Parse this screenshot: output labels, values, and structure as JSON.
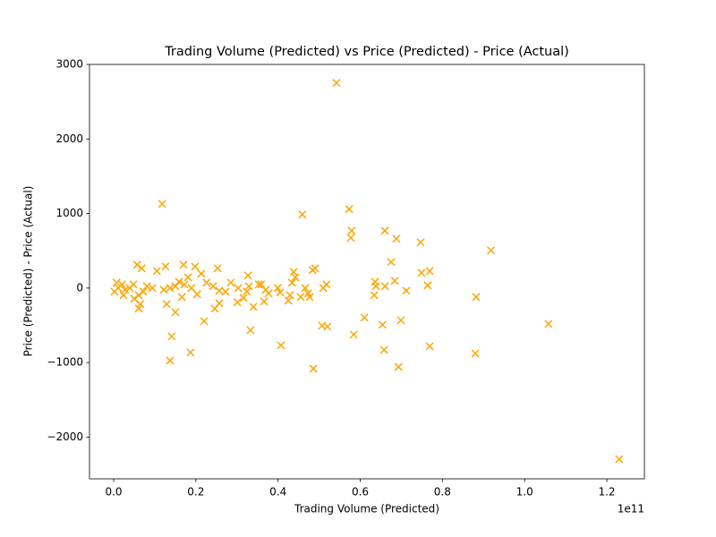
{
  "chart_data": {
    "type": "scatter",
    "title": "Trading Volume (Predicted) vs Price (Predicted) - Price (Actual)",
    "x_label": "Trading Volume (Predicted)",
    "y_label": "Price (Predicted) - Price (Actual)",
    "x_offset_label": "1e11",
    "color": "#ffa500",
    "marker": "x",
    "xlim": [
      -0.0588,
      1.2914
    ],
    "ylim": [
      -2560,
      3000
    ],
    "xticks": [
      {
        "value": 0,
        "label": "0.0"
      },
      {
        "value": 0.2,
        "label": "0.2"
      },
      {
        "value": 0.4,
        "label": "0.4"
      },
      {
        "value": 0.6,
        "label": "0.6"
      },
      {
        "value": 0.8,
        "label": "0.8"
      },
      {
        "value": 1.0,
        "label": "1.0"
      },
      {
        "value": 1.2,
        "label": "1.2"
      }
    ],
    "yticks": [
      {
        "value": -2000,
        "label": "−2000"
      },
      {
        "value": -1000,
        "label": "−1000"
      },
      0,
      1000,
      2000,
      3000
    ],
    "x": [
      0.542,
      0.118,
      0.459,
      0.573,
      0.579,
      0.577,
      0.66,
      0.688,
      0.918,
      0.747,
      0.675,
      0.769,
      0.749,
      0.684,
      0.636,
      0.638,
      0.634,
      0.712,
      0.66,
      0.764,
      0.882,
      0.61,
      0.699,
      0.654,
      1.058,
      0.584,
      0.769,
      0.658,
      0.88,
      0.693,
      0.486,
      1.23,
      0.407,
      0.187,
      0.137,
      0.141,
      0.333,
      0.22,
      0.15,
      0.129,
      0.061,
      0.507,
      0.52,
      0.484,
      0.49,
      0.473,
      0.477,
      0.518,
      0.51,
      0.438,
      0.442,
      0.434,
      0.429,
      0.425,
      0.455,
      0.405,
      0.37,
      0.353,
      0.359,
      0.327,
      0.329,
      0.324,
      0.34,
      0.301,
      0.285,
      0.272,
      0.257,
      0.253,
      0.246,
      0.242,
      0.226,
      0.213,
      0.198,
      0.189,
      0.172,
      0.17,
      0.159,
      0.15,
      0.181,
      0.166,
      0.137,
      0.126,
      0.105,
      0.094,
      0.081,
      0.072,
      0.068,
      0.057,
      0.048,
      0.039,
      0.028,
      0.02,
      0.011,
      0.002,
      0.007,
      0.024,
      0.05,
      0.061,
      0.065,
      0.122,
      0.203,
      0.257,
      0.377,
      0.399,
      0.466,
      0.366,
      0.303,
      0.316
    ],
    "values": [
      2752,
      1130,
      986,
      1058,
      769,
      673,
      769,
      661,
      505,
      613,
      349,
      228,
      204,
      96,
      84,
      24,
      -96,
      -36,
      24,
      36,
      -120,
      -397,
      -433,
      -493,
      -481,
      -625,
      -781,
      -829,
      -877,
      -1058,
      -1082,
      -2296,
      -769,
      -865,
      -974,
      -649,
      -565,
      -445,
      -325,
      -216,
      -276,
      -505,
      -517,
      240,
      264,
      -72,
      -120,
      48,
      0,
      216,
      144,
      72,
      -96,
      -168,
      -120,
      -60,
      -24,
      48,
      48,
      168,
      24,
      -48,
      -252,
      -192,
      72,
      -48,
      -204,
      264,
      -276,
      24,
      72,
      192,
      288,
      0,
      48,
      312,
      84,
      24,
      144,
      -120,
      0,
      288,
      228,
      0,
      24,
      -48,
      264,
      312,
      48,
      0,
      -24,
      48,
      0,
      -48,
      72,
      -96,
      -144,
      -96,
      -216,
      -24,
      -84,
      -36,
      -72,
      0,
      0,
      -180,
      0,
      -132
    ]
  }
}
